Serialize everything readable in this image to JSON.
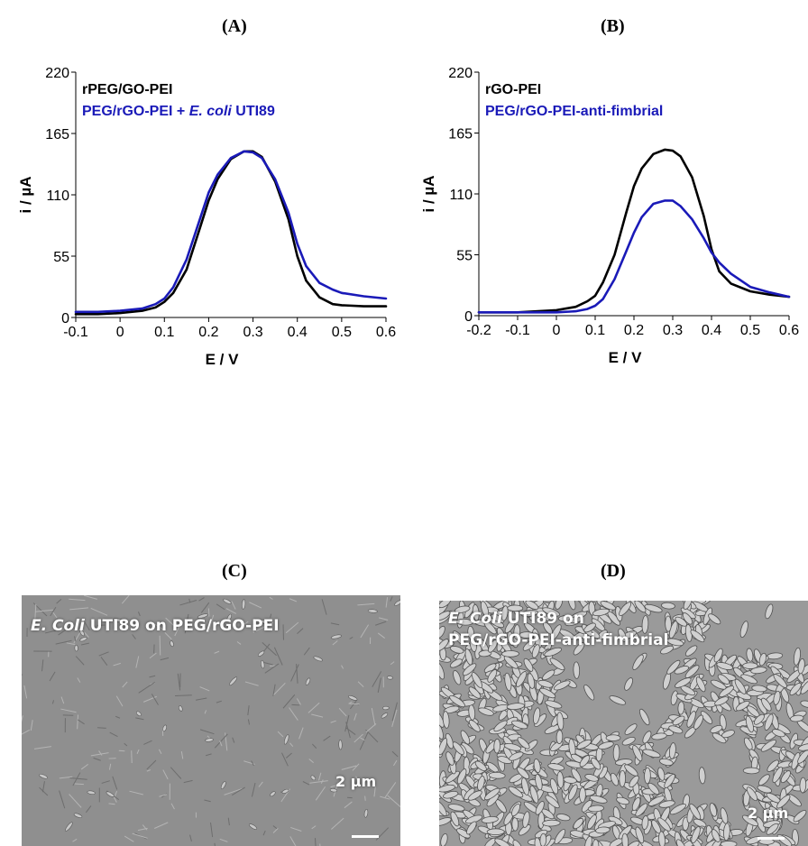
{
  "panels": {
    "A": {
      "letter": "(A)"
    },
    "B": {
      "letter": "(B)"
    },
    "C": {
      "letter": "(C)",
      "caption_italic": "E. Coli",
      "caption_rest": " UTI89 on PEG/rGO-PEI",
      "scale_label": "2 µm",
      "texture": "sparse"
    },
    "D": {
      "letter": "(D)",
      "caption_italic": "E. Coli",
      "caption_line1_rest": " UTI89 on",
      "caption_line2": "PEG/rGO-PEI-anti-fimbrial",
      "scale_label": "2 µm",
      "texture": "dense"
    }
  },
  "chart_data": [
    {
      "type": "line",
      "id": "A",
      "xlabel": "E / V",
      "ylabel": "i / µA",
      "xlim": [
        -0.1,
        0.6
      ],
      "ylim": [
        0,
        220
      ],
      "xticks": [
        "-0.1",
        "0",
        "0.1",
        "0.2",
        "0.3",
        "0.4",
        "0.5",
        "0.6"
      ],
      "yticks": [
        "0",
        "55",
        "110",
        "165",
        "220"
      ],
      "legend": [
        {
          "parts": [
            {
              "text": "rPEG/GO-PEI",
              "italic": false
            }
          ],
          "color": "#000000"
        },
        {
          "parts": [
            {
              "text": "PEG/rGO-PEI + ",
              "italic": false
            },
            {
              "text": "E. coli",
              "italic": true
            },
            {
              "text": " UTI89",
              "italic": false
            }
          ],
          "color": "#1a1ab8"
        }
      ],
      "series": [
        {
          "name": "rPEG/GO-PEI",
          "color": "#000000",
          "x": [
            -0.1,
            -0.05,
            0.0,
            0.05,
            0.08,
            0.1,
            0.12,
            0.15,
            0.18,
            0.2,
            0.22,
            0.25,
            0.28,
            0.3,
            0.32,
            0.35,
            0.38,
            0.4,
            0.42,
            0.45,
            0.48,
            0.5,
            0.55,
            0.6
          ],
          "y": [
            3,
            3,
            4,
            6,
            9,
            14,
            22,
            43,
            80,
            105,
            124,
            142,
            149,
            149,
            144,
            122,
            88,
            55,
            33,
            18,
            12,
            11,
            10,
            10
          ]
        },
        {
          "name": "PEG/rGO-PEI + E. coli UTI89",
          "color": "#1a1ab8",
          "x": [
            -0.1,
            -0.05,
            0.0,
            0.05,
            0.08,
            0.1,
            0.12,
            0.15,
            0.18,
            0.2,
            0.22,
            0.25,
            0.28,
            0.3,
            0.32,
            0.35,
            0.38,
            0.4,
            0.42,
            0.45,
            0.48,
            0.5,
            0.55,
            0.6
          ],
          "y": [
            5,
            5,
            6,
            8,
            12,
            17,
            27,
            52,
            88,
            112,
            128,
            143,
            149,
            148,
            143,
            124,
            94,
            66,
            46,
            31,
            25,
            22,
            19,
            17
          ]
        }
      ]
    },
    {
      "type": "line",
      "id": "B",
      "xlabel": "E / V",
      "ylabel": "i / µA",
      "xlim": [
        -0.2,
        0.6
      ],
      "ylim": [
        0,
        220
      ],
      "xticks": [
        "-0.2",
        "-0.1",
        "0",
        "0.1",
        "0.2",
        "0.3",
        "0.4",
        "0.5",
        "0.6"
      ],
      "yticks": [
        "0",
        "55",
        "110",
        "165",
        "220"
      ],
      "legend": [
        {
          "parts": [
            {
              "text": "rGO-PEI",
              "italic": false
            }
          ],
          "color": "#000000"
        },
        {
          "parts": [
            {
              "text": "PEG/rGO-PEI-anti-fimbrial",
              "italic": false
            }
          ],
          "color": "#1a1ab8"
        }
      ],
      "series": [
        {
          "name": "rGO-PEI",
          "color": "#000000",
          "x": [
            -0.2,
            -0.1,
            0.0,
            0.05,
            0.08,
            0.1,
            0.12,
            0.15,
            0.18,
            0.2,
            0.22,
            0.25,
            0.28,
            0.3,
            0.32,
            0.35,
            0.38,
            0.4,
            0.42,
            0.45,
            0.5,
            0.55,
            0.6
          ],
          "y": [
            3,
            3,
            5,
            8,
            13,
            18,
            30,
            55,
            93,
            117,
            133,
            146,
            150,
            149,
            144,
            125,
            90,
            60,
            40,
            29,
            22,
            19,
            17
          ]
        },
        {
          "name": "PEG/rGO-PEI-anti-fimbrial",
          "color": "#1a1ab8",
          "x": [
            -0.2,
            -0.1,
            0.0,
            0.05,
            0.08,
            0.1,
            0.12,
            0.15,
            0.18,
            0.2,
            0.22,
            0.25,
            0.28,
            0.3,
            0.32,
            0.35,
            0.38,
            0.4,
            0.42,
            0.45,
            0.5,
            0.55,
            0.6
          ],
          "y": [
            3,
            3,
            3,
            4,
            6,
            9,
            15,
            33,
            58,
            75,
            89,
            101,
            104,
            104,
            99,
            87,
            70,
            57,
            48,
            38,
            26,
            21,
            17
          ]
        }
      ]
    }
  ]
}
